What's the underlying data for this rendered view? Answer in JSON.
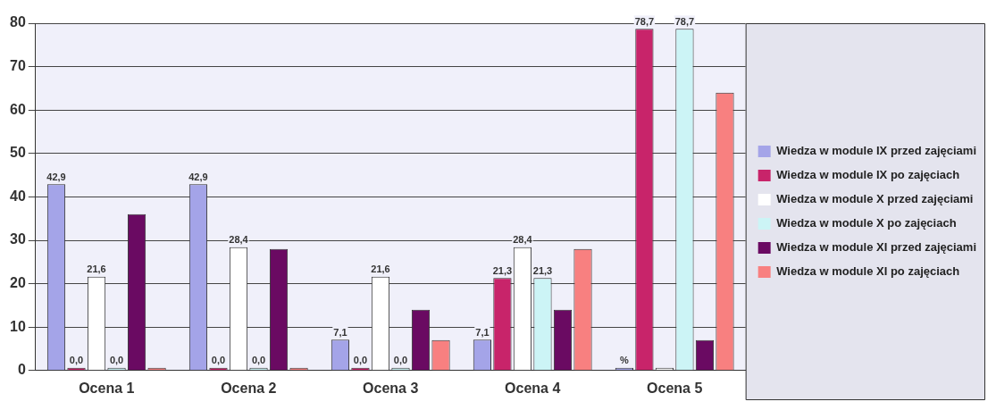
{
  "chart_data": {
    "type": "bar",
    "categories": [
      "Ocena 1",
      "Ocena 2",
      "Ocena 3",
      "Ocena 4",
      "Ocena 5"
    ],
    "series": [
      {
        "name": "Wiedza w module IX przed zajęciami",
        "color": "#a4a4e8",
        "values": [
          42.9,
          42.9,
          7.1,
          7.1,
          0
        ],
        "value_labels": [
          "42,9",
          "42,9",
          "7,1",
          "7,1",
          "%"
        ]
      },
      {
        "name": "Wiedza w module IX po zajęciach",
        "color": "#c8246a",
        "values": [
          0,
          0,
          0,
          21.3,
          78.7
        ],
        "value_labels": [
          "0,0",
          "0,0",
          "0,0",
          "21,3",
          "78,7"
        ]
      },
      {
        "name": "Wiedza w module X przed zajęciami",
        "color": "#ffffff",
        "values": [
          21.6,
          28.4,
          21.6,
          28.4,
          0
        ],
        "value_labels": [
          "21,6",
          "28,4",
          "21,6",
          "28,4",
          null
        ]
      },
      {
        "name": "Wiedza w module X po zajęciach",
        "color": "#ccf4f6",
        "values": [
          0,
          0,
          0,
          21.3,
          78.7
        ],
        "value_labels": [
          "0,0",
          "0,0",
          "0,0",
          "21,3",
          "78,7"
        ]
      },
      {
        "name": "Wiedza w module XI przed zajęciami",
        "color": "#6a0a62",
        "values": [
          36,
          28,
          14,
          14,
          7
        ]
      },
      {
        "name": "Wiedza w module XI po zajęciach",
        "color": "#f88080",
        "values": [
          0,
          0,
          7,
          28,
          64
        ]
      }
    ],
    "ylim": [
      0,
      80
    ],
    "yticks": [
      0,
      10,
      20,
      30,
      40,
      50,
      60,
      70,
      80
    ],
    "grid": "y",
    "legend": "right"
  }
}
